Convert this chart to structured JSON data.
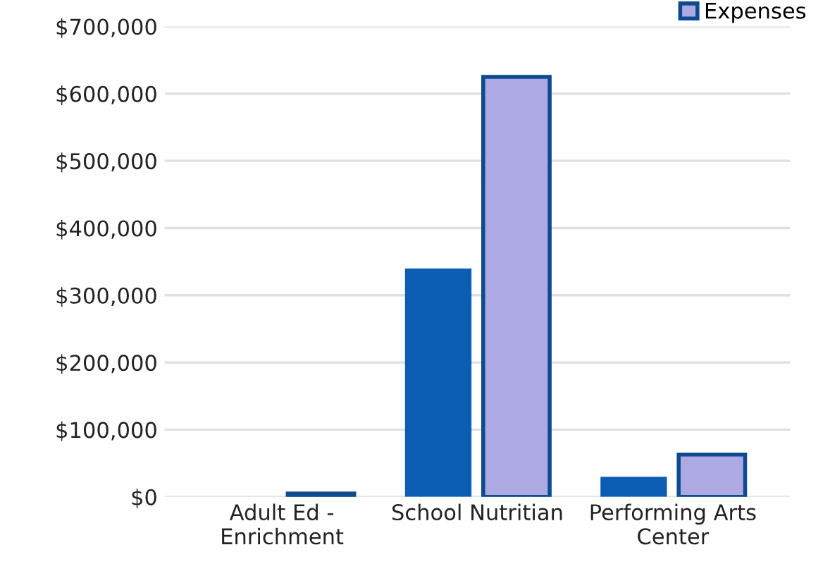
{
  "chart_data": {
    "type": "bar",
    "categories": [
      "Adult Ed -\nEnrichment",
      "School Nutritian",
      "Performing Arts\nCenter"
    ],
    "series": [
      {
        "color": "#0b5cb3",
        "values": [
          0,
          340000,
          30000
        ]
      },
      {
        "name": "Expenses",
        "color": "#ada9e3",
        "values": [
          5000,
          625000,
          63000
        ]
      }
    ],
    "ylim": [
      0,
      700000
    ],
    "yticks": [
      {
        "value": 0,
        "label": "$0"
      },
      {
        "value": 100000,
        "label": "$100,000"
      },
      {
        "value": 200000,
        "label": "$200,000"
      },
      {
        "value": 300000,
        "label": "$300,000"
      },
      {
        "value": 400000,
        "label": "$400,000"
      },
      {
        "value": 500000,
        "label": "$500,000"
      },
      {
        "value": 600000,
        "label": "$600,000"
      },
      {
        "value": 700000,
        "label": "$700,000"
      }
    ],
    "grid": "y",
    "legend": "top right"
  }
}
